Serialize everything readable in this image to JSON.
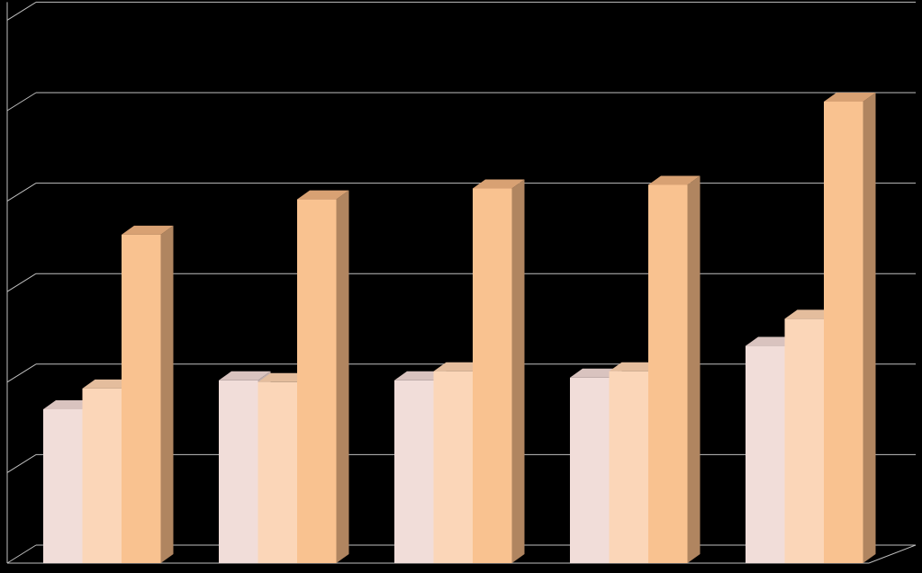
{
  "chart_data": {
    "type": "bar",
    "style": "3d-clustered-column",
    "background_color": "#000000",
    "gridline_color": "#bfbfbf",
    "grid": true,
    "legend": "none",
    "ylim": [
      0,
      6
    ],
    "categories": [
      "",
      "",
      "",
      "",
      ""
    ],
    "series": [
      {
        "values": [
          1.7,
          2.02,
          2.02,
          2.05,
          2.4
        ],
        "front_color": "#f1ddd9",
        "side_color": "#c2aeab",
        "top_color": "#d9c3bf"
      },
      {
        "values": [
          1.93,
          2.0,
          2.12,
          2.12,
          2.7
        ],
        "front_color": "#fbd6b8",
        "side_color": "#c9a88c",
        "top_color": "#e4bd9d"
      },
      {
        "values": [
          3.63,
          4.02,
          4.14,
          4.18,
          5.1
        ],
        "front_color": "#f9c290",
        "side_color": "#b08560",
        "top_color": "#d8a173"
      }
    ]
  }
}
